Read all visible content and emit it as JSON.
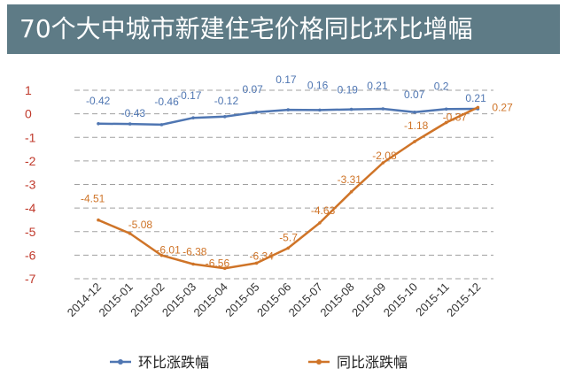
{
  "chart_data": {
    "type": "line",
    "title": "70个大中城市新建住宅价格同比环比增幅",
    "categories": [
      "2014-12",
      "2015-01",
      "2015-02",
      "2015-03",
      "2015-04",
      "2015-05",
      "2015-06",
      "2015-07",
      "2015-08",
      "2015-09",
      "2015-10",
      "2015-11",
      "2015-12"
    ],
    "y_ticks": [
      1,
      0,
      -1,
      -2,
      -3,
      -4,
      -5,
      -6,
      -7
    ],
    "ylim": [
      -7,
      1
    ],
    "grid": true,
    "legend_position": "bottom",
    "series": [
      {
        "name": "环比涨跌幅",
        "color": "#4f76b2",
        "values": [
          -0.42,
          -0.43,
          -0.46,
          -0.17,
          -0.12,
          0.07,
          0.17,
          0.16,
          0.19,
          0.21,
          0.07,
          0.2,
          0.21
        ],
        "labels": [
          "-0.42",
          "-0.43",
          "-0.46",
          "-0.17",
          "-0.12",
          "0.07",
          "0.17",
          "0.16",
          "0.19",
          "0.21",
          "0.07",
          "0.2",
          "0.21"
        ]
      },
      {
        "name": "同比涨跌幅",
        "color": "#cf7428",
        "values": [
          -4.51,
          -5.08,
          -6.01,
          -6.38,
          -6.56,
          -6.34,
          -5.7,
          -4.63,
          -3.31,
          -2.08,
          -1.18,
          -0.37,
          0.27
        ],
        "labels": [
          "-4.51",
          "-5.08",
          "-6.01",
          "-6.38",
          "-6.56",
          "-6.34",
          "-5.7",
          "-4.63",
          "-3.31",
          "-2.08",
          "-1.18",
          "-0.37",
          "0.27"
        ]
      }
    ]
  },
  "colors": {
    "title_bar": "#5e7b86",
    "y_axis_text": "#c0392b",
    "grid": "#a0a0a0"
  }
}
